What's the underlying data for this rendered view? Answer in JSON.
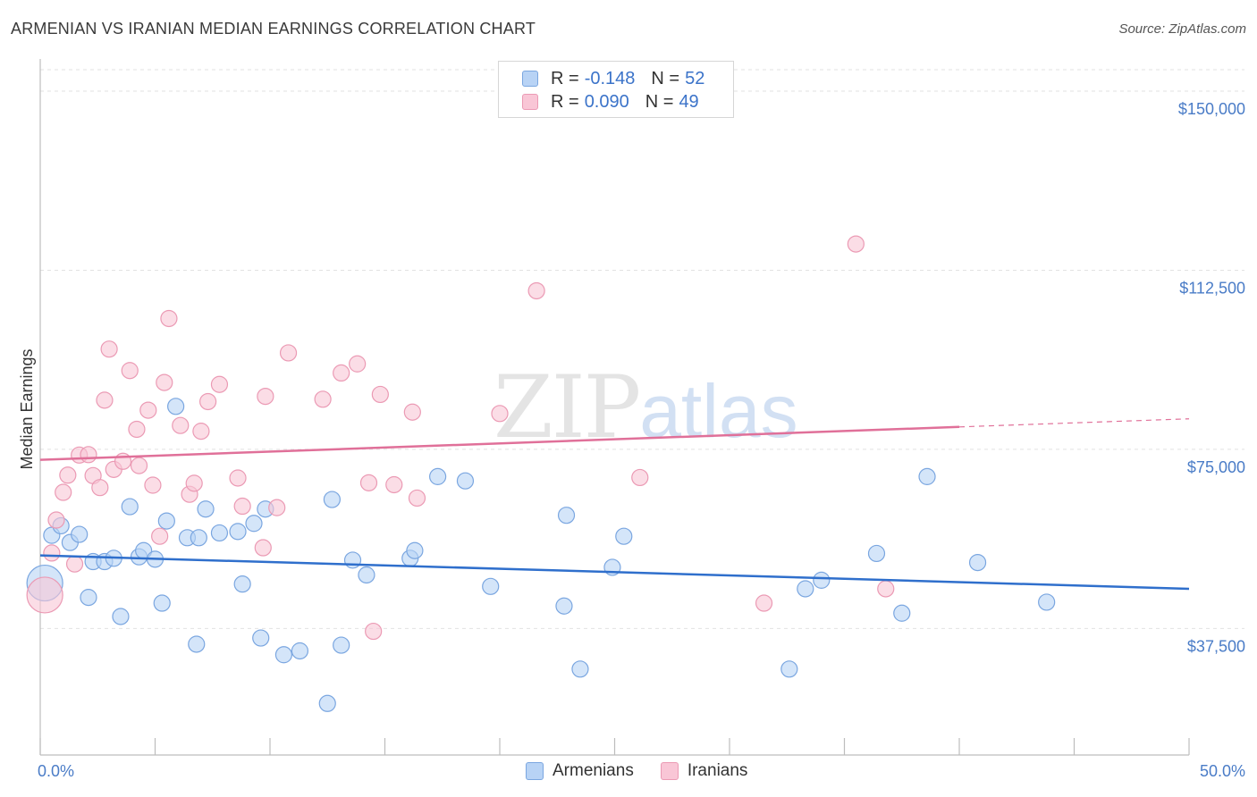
{
  "title": "ARMENIAN VS IRANIAN MEDIAN EARNINGS CORRELATION CHART",
  "source": "Source: ZipAtlas.com",
  "watermark": {
    "zip": "ZIP",
    "atlas": "atlas"
  },
  "legend": {
    "rows": [
      {
        "r_label": "R =",
        "r_value": "-0.148",
        "n_label": "N =",
        "n_value": "52",
        "color_fill": "#b8d3f5",
        "color_stroke": "#7aa6e0"
      },
      {
        "r_label": "R =",
        "r_value": "0.090",
        "n_label": "N =",
        "n_value": "49",
        "color_fill": "#f9c6d6",
        "color_stroke": "#eb9ab4"
      }
    ]
  },
  "chart_data": {
    "type": "scatter",
    "title": "ARMENIAN VS IRANIAN MEDIAN EARNINGS CORRELATION CHART",
    "xlabel": "",
    "ylabel": "Median Earnings",
    "xlim": [
      0,
      50
    ],
    "ylim": [
      11000,
      154500
    ],
    "x_tick_labels": [
      "0.0%",
      "50.0%"
    ],
    "y_ticks": [
      37500,
      75000,
      112500,
      150000
    ],
    "y_tick_labels": [
      "$37,500",
      "$75,000",
      "$112,500",
      "$150,000"
    ],
    "grid": true,
    "legend_position": "bottom-center",
    "series": [
      {
        "name": "Armenians",
        "color": "#7aa6e0",
        "fill": "#b8d3f5",
        "trend": {
          "x": [
            0,
            50
          ],
          "y": [
            52800,
            45800
          ],
          "color": "#2f6fcc"
        },
        "points": [
          [
            0.2,
            47000
          ],
          [
            0.5,
            57000
          ],
          [
            0.9,
            59000
          ],
          [
            1.3,
            55500
          ],
          [
            1.7,
            57200
          ],
          [
            2.1,
            44000
          ],
          [
            2.3,
            51500
          ],
          [
            2.8,
            51500
          ],
          [
            3.2,
            52200
          ],
          [
            3.5,
            40000
          ],
          [
            3.9,
            63000
          ],
          [
            4.3,
            52500
          ],
          [
            4.5,
            53800
          ],
          [
            5.0,
            52000
          ],
          [
            5.3,
            42800
          ],
          [
            5.5,
            60000
          ],
          [
            5.9,
            84000
          ],
          [
            6.4,
            56500
          ],
          [
            6.8,
            34200
          ],
          [
            6.9,
            56500
          ],
          [
            7.2,
            62500
          ],
          [
            7.8,
            57500
          ],
          [
            8.6,
            57800
          ],
          [
            8.8,
            46800
          ],
          [
            9.3,
            59500
          ],
          [
            9.6,
            35500
          ],
          [
            9.8,
            62500
          ],
          [
            10.6,
            32000
          ],
          [
            11.3,
            32800
          ],
          [
            12.5,
            21800
          ],
          [
            12.7,
            64500
          ],
          [
            13.1,
            34000
          ],
          [
            13.6,
            51800
          ],
          [
            14.2,
            48700
          ],
          [
            16.1,
            52200
          ],
          [
            16.3,
            53800
          ],
          [
            17.3,
            69300
          ],
          [
            18.5,
            68400
          ],
          [
            19.6,
            46300
          ],
          [
            22.8,
            42200
          ],
          [
            22.9,
            61200
          ],
          [
            23.5,
            29000
          ],
          [
            24.9,
            50300
          ],
          [
            25.4,
            56800
          ],
          [
            32.6,
            29000
          ],
          [
            33.3,
            45800
          ],
          [
            34.0,
            47600
          ],
          [
            36.4,
            53200
          ],
          [
            37.5,
            40700
          ],
          [
            38.6,
            69300
          ],
          [
            40.8,
            51300
          ],
          [
            43.8,
            43000
          ]
        ]
      },
      {
        "name": "Iranians",
        "color": "#eb9ab4",
        "fill": "#f9c6d6",
        "trend": {
          "x": [
            0,
            40
          ],
          "y": [
            72800,
            79700
          ],
          "color": "#e07099",
          "dash_to": [
            50,
            81400
          ]
        },
        "points": [
          [
            0.2,
            44500
          ],
          [
            0.5,
            53300
          ],
          [
            0.7,
            60200
          ],
          [
            1.0,
            66000
          ],
          [
            1.2,
            69600
          ],
          [
            1.5,
            51000
          ],
          [
            1.7,
            73800
          ],
          [
            2.1,
            73900
          ],
          [
            2.3,
            69500
          ],
          [
            2.6,
            67000
          ],
          [
            2.8,
            85300
          ],
          [
            3.0,
            96000
          ],
          [
            3.2,
            70800
          ],
          [
            3.6,
            72500
          ],
          [
            3.9,
            91500
          ],
          [
            4.2,
            79200
          ],
          [
            4.3,
            71600
          ],
          [
            4.7,
            83200
          ],
          [
            4.9,
            67500
          ],
          [
            5.2,
            56800
          ],
          [
            5.4,
            89000
          ],
          [
            5.6,
            102400
          ],
          [
            6.1,
            80000
          ],
          [
            6.5,
            65600
          ],
          [
            6.7,
            67900
          ],
          [
            7.0,
            78800
          ],
          [
            7.3,
            85000
          ],
          [
            7.8,
            88600
          ],
          [
            8.6,
            69000
          ],
          [
            8.8,
            63100
          ],
          [
            9.7,
            54400
          ],
          [
            9.8,
            86100
          ],
          [
            10.3,
            62800
          ],
          [
            10.8,
            95200
          ],
          [
            12.3,
            85500
          ],
          [
            13.1,
            91000
          ],
          [
            13.8,
            92900
          ],
          [
            14.3,
            68000
          ],
          [
            14.5,
            36900
          ],
          [
            14.8,
            86500
          ],
          [
            15.4,
            67600
          ],
          [
            16.2,
            82800
          ],
          [
            16.4,
            64800
          ],
          [
            20.0,
            82500
          ],
          [
            21.6,
            108200
          ],
          [
            26.1,
            69100
          ],
          [
            31.5,
            42800
          ],
          [
            35.5,
            118000
          ],
          [
            36.8,
            45800
          ]
        ]
      }
    ]
  }
}
